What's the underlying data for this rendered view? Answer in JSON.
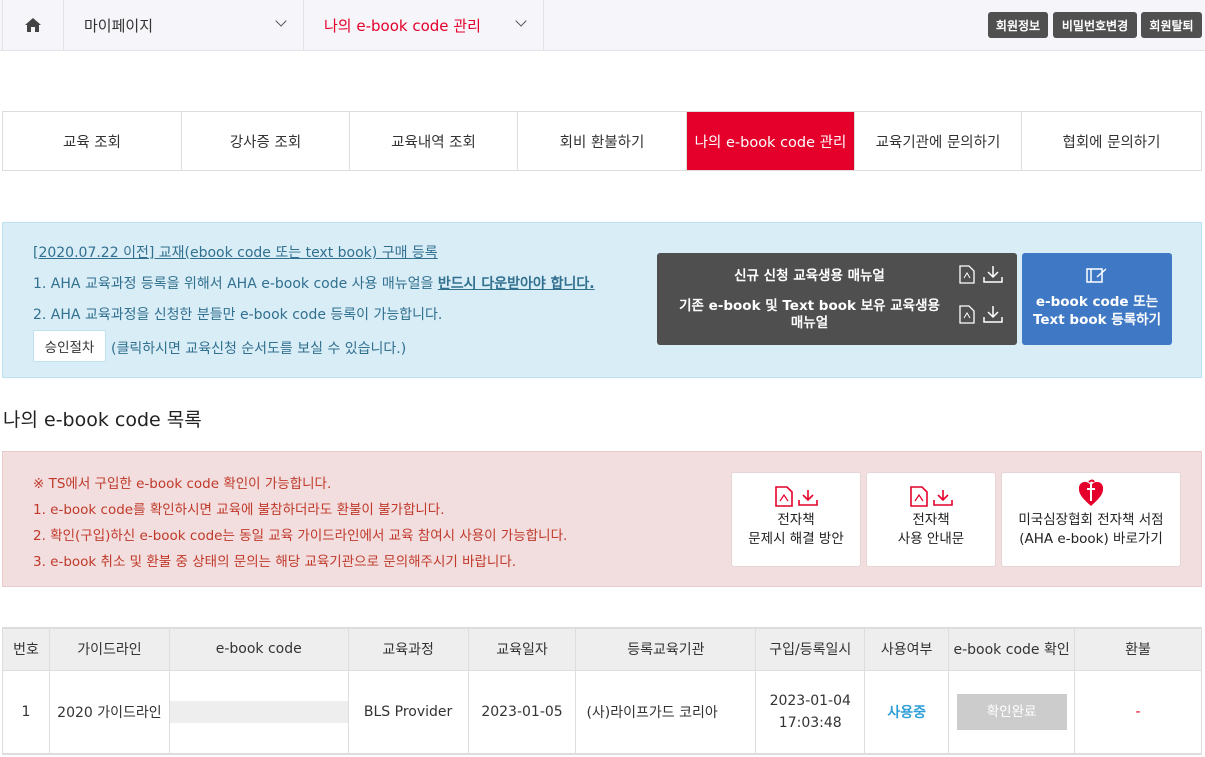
{
  "topbar": {
    "menu1": "마이페이지",
    "menu2": "나의 e-book code 관리",
    "buttons": [
      "회원정보",
      "비밀번호변경",
      "회원탈퇴"
    ]
  },
  "tabs": [
    {
      "label": "교육 조회"
    },
    {
      "label": "강사증 조회"
    },
    {
      "label": "교육내역 조회"
    },
    {
      "label": "회비 환불하기"
    },
    {
      "label": "나의 e-book code 관리",
      "active": true
    },
    {
      "label": "교육기관에 문의하기"
    },
    {
      "label": "협회에 문의하기"
    }
  ],
  "info": {
    "title": "[2020.07.22 이전] 교재(ebook code 또는 text book) 구매 등록",
    "line1": "1. AHA 교육과정 등록을 위해서 AHA e-book code 사용 매뉴얼을 ",
    "line1_emph": "반드시 다운받아야 합니다.",
    "line2": "2. AHA 교육과정을 신청한 분들만 e-book code 등록이 가능합니다.",
    "approve_btn": "승인절차",
    "approve_note": "(클릭하시면 교육신청 순서도를 보실 수 있습니다.)",
    "manual1": "신규 신청 교육생용 매뉴얼",
    "manual2": "기존 e-book 및 Text book 보유 교육생용 매뉴얼",
    "register_btn_line1": "e-book code 또는",
    "register_btn_line2": "Text book 등록하기"
  },
  "list_title": "나의 e-book code 목록",
  "notice": {
    "lines": [
      "※ TS에서 구입한 e-book code 확인이 가능합니다.",
      "1. e-book code를 확인하시면 교육에 불참하더라도 환불이 불가합니다.",
      "2. 확인(구입)하신 e-book code는 동일 교육 가이드라인에서 교육 참여시 사용이 가능합니다.",
      "3. e-book 취소 및 환불 중 상태의 문의는 해당 교육기관으로 문의해주시기 바랍니다."
    ],
    "cards": [
      {
        "l1": "전자책",
        "l2": "문제시 해결 방안"
      },
      {
        "l1": "전자책",
        "l2": "사용 안내문"
      },
      {
        "l1": "미국심장협회 전자책 서점",
        "l2": "(AHA e-book) 바로가기"
      }
    ]
  },
  "table": {
    "headers": [
      "번호",
      "가이드라인",
      "e-book code",
      "교육과정",
      "교육일자",
      "등록교육기관",
      "구입/등록일시",
      "사용여부",
      "e-book code 확인",
      "환불"
    ],
    "rows": [
      {
        "no": "1",
        "guideline": "2020 가이드라인",
        "code": "",
        "course": "BLS Provider",
        "date": "2023-01-05",
        "org": "(사)라이프가드 코리아",
        "reg_date": "2023-01-04",
        "reg_time": "17:03:48",
        "status": "사용중",
        "confirm": "확인완료",
        "refund": "-"
      }
    ]
  },
  "colors": {
    "accent": "#e4002b",
    "info_bg": "#d9edf7",
    "warn_bg": "#f2dede",
    "register_btn": "#3f78c4",
    "status": "#2f9fd8"
  }
}
